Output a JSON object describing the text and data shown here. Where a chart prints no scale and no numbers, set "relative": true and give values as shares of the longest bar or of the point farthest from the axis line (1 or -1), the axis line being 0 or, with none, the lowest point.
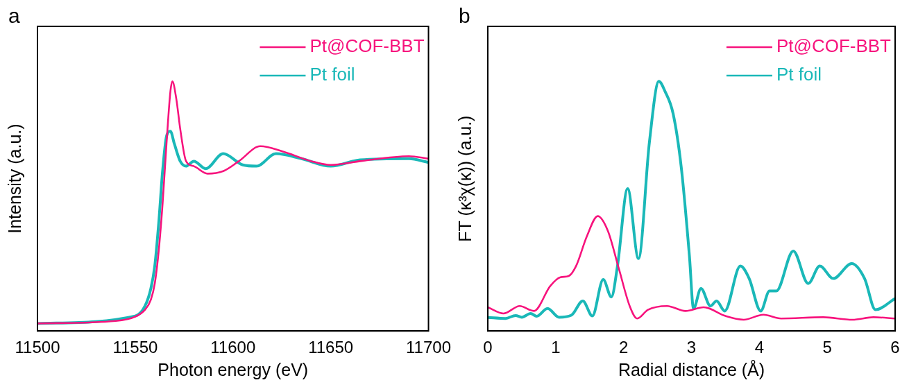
{
  "chart_data": [
    {
      "type": "line",
      "relative": true,
      "xlabel": "Photon energy (eV)",
      "ylabel": "Intensity (a.u.)",
      "annotations": [
        "a"
      ],
      "xlim": [
        11500,
        11700
      ],
      "xticks": [
        11500,
        11550,
        11600,
        11650,
        11700
      ],
      "legend": "top right",
      "grid": false,
      "marker": "none",
      "line_style": "solid",
      "series": [
        {
          "name": "Pt@COF-BBT",
          "color": "#f7137d",
          "x": [
            11500,
            11540,
            11550,
            11555,
            11558,
            11560,
            11562,
            11564,
            11566,
            11568,
            11569,
            11571,
            11573,
            11576,
            11580,
            11587,
            11595,
            11603,
            11614,
            11625,
            11640,
            11650,
            11665,
            11690,
            11700
          ],
          "values": [
            0.03,
            0.04,
            0.057,
            0.085,
            0.125,
            0.19,
            0.32,
            0.51,
            0.75,
            0.96,
            1,
            0.93,
            0.81,
            0.68,
            0.66,
            0.63,
            0.64,
            0.68,
            0.74,
            0.72,
            0.68,
            0.665,
            0.68,
            0.7,
            0.69
          ]
        },
        {
          "name": "Pt foil",
          "color": "#1ab8b8",
          "x": [
            11500,
            11550,
            11555,
            11558,
            11560,
            11562,
            11564,
            11566,
            11568,
            11570,
            11573,
            11576,
            11580,
            11586,
            11595,
            11605,
            11612,
            11622,
            11635,
            11650,
            11665,
            11690,
            11700
          ],
          "values": [
            0.03,
            0.06,
            0.1,
            0.17,
            0.26,
            0.43,
            0.64,
            0.78,
            0.8,
            0.75,
            0.68,
            0.66,
            0.68,
            0.65,
            0.71,
            0.665,
            0.66,
            0.71,
            0.69,
            0.66,
            0.685,
            0.69,
            0.675
          ]
        }
      ]
    },
    {
      "type": "line",
      "relative": true,
      "xlabel": "Radial distance (Å)",
      "ylabel": "FT (κ³χ(κ)) (a.u.)",
      "annotations": [
        "b"
      ],
      "xlim": [
        0,
        6
      ],
      "xticks": [
        0,
        1,
        2,
        3,
        4,
        5,
        6
      ],
      "legend": "top right",
      "grid": false,
      "marker": "none",
      "line_style": "solid",
      "series": [
        {
          "name": "Pt@COF-BBT",
          "color": "#f7137d",
          "x": [
            0,
            0.23,
            0.47,
            0.68,
            0.92,
            1.07,
            1.19,
            1.3,
            1.46,
            1.62,
            1.77,
            1.93,
            2.09,
            2.2,
            2.36,
            2.64,
            2.91,
            3.18,
            3.5,
            3.77,
            4.06,
            4.32,
            4.94,
            5.37,
            5.68,
            6
          ],
          "values": [
            0.095,
            0.07,
            0.1,
            0.08,
            0.18,
            0.215,
            0.22,
            0.26,
            0.38,
            0.46,
            0.4,
            0.25,
            0.1,
            0.05,
            0.085,
            0.1,
            0.08,
            0.095,
            0.06,
            0.045,
            0.065,
            0.05,
            0.055,
            0.045,
            0.055,
            0.05
          ]
        },
        {
          "name": "Pt foil",
          "color": "#1ab8b8",
          "x": [
            0,
            0.26,
            0.41,
            0.5,
            0.63,
            0.72,
            0.88,
            1.05,
            1.23,
            1.4,
            1.54,
            1.7,
            1.82,
            1.91,
            2.06,
            2.22,
            2.38,
            2.52,
            2.61,
            2.73,
            2.85,
            2.97,
            3.03,
            3.14,
            3.28,
            3.37,
            3.49,
            3.72,
            3.85,
            4.02,
            4.15,
            4.25,
            4.5,
            4.72,
            4.89,
            5.09,
            5.36,
            5.55,
            5.71,
            6
          ],
          "values": [
            0.054,
            0.05,
            0.062,
            0.055,
            0.07,
            0.059,
            0.09,
            0.055,
            0.063,
            0.12,
            0.06,
            0.206,
            0.136,
            0.26,
            0.57,
            0.29,
            0.755,
            1,
            0.96,
            0.87,
            0.655,
            0.3,
            0.09,
            0.17,
            0.1,
            0.12,
            0.08,
            0.26,
            0.21,
            0.08,
            0.16,
            0.16,
            0.32,
            0.19,
            0.26,
            0.21,
            0.27,
            0.21,
            0.085,
            0.13
          ]
        }
      ]
    }
  ]
}
